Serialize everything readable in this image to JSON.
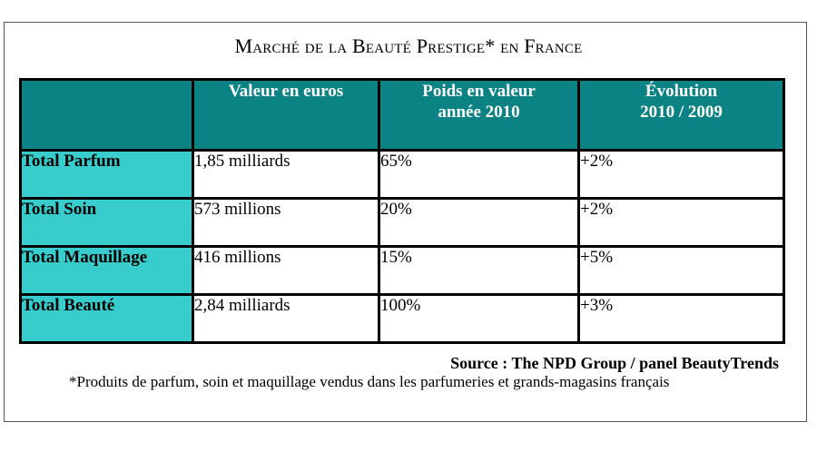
{
  "title": "Marché de la Beauté Prestige* en France",
  "table": {
    "headers": [
      "",
      "Valeur en euros",
      "Poids en valeur\nannée 2010",
      "Évolution\n2010 / 2009"
    ],
    "rows": [
      {
        "label": "Total Parfum",
        "valeur": "1,85 milliards",
        "poids": "65%",
        "evolution": "+2%"
      },
      {
        "label": "Total Soin",
        "valeur": "573 millions",
        "poids": "20%",
        "evolution": "+2%"
      },
      {
        "label": "Total Maquillage",
        "valeur": "416 millions",
        "poids": "15%",
        "evolution": "+5%"
      },
      {
        "label": "Total Beauté",
        "valeur": "2,84 milliards",
        "poids": "100%",
        "evolution": "+3%"
      }
    ]
  },
  "source": "Source : The NPD Group / panel BeautyTrends",
  "footnote": "*Produits de parfum, soin et maquillage vendus dans les parfumeries et grands-magasins français",
  "colors": {
    "header_bg": "#0b8284",
    "rowhead_bg": "#38cccc",
    "header_text": "#ffffff"
  }
}
